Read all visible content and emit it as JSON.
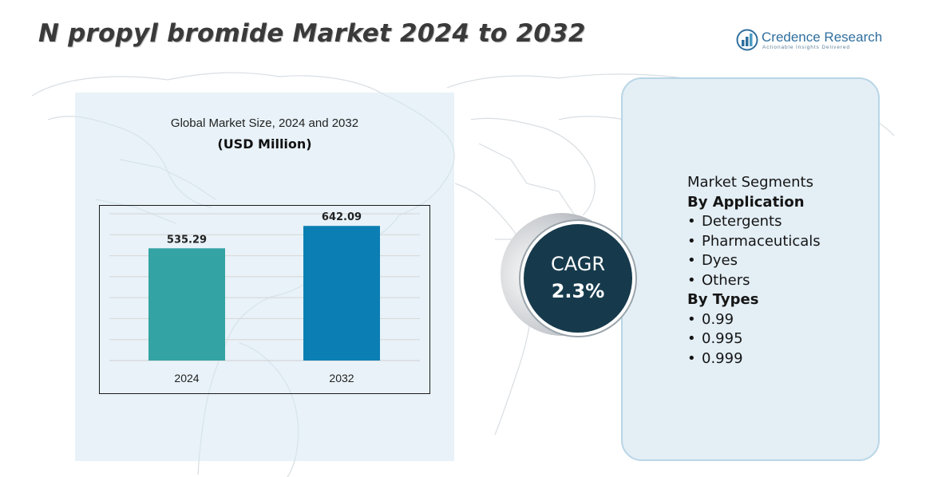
{
  "title": "N propyl bromide Market 2024 to 2032",
  "logo": {
    "name": "Credence Research",
    "tagline": "Actionable Insights Delivered",
    "icon": "bar-growth-icon"
  },
  "colors": {
    "bar_2024": "#34a3a3",
    "bar_2032": "#0b7fb3",
    "cagr_circle": "#163a4c",
    "panel": "#e3eef5"
  },
  "chart_data": {
    "type": "bar",
    "title": "Global Market Size, 2024 and 2032",
    "subtitle": "(USD Million)",
    "categories": [
      "2024",
      "2032"
    ],
    "values": [
      535.29,
      642.09
    ],
    "value_labels": [
      "535.29",
      "642.09"
    ],
    "ylim": [
      0,
      700
    ],
    "grid": true
  },
  "cagr": {
    "label": "CAGR",
    "value": "2.3%"
  },
  "segments": {
    "heading": "Market Segments",
    "groups": [
      {
        "title": "By Application",
        "items": [
          "Detergents",
          "Pharmaceuticals",
          "Dyes",
          "Others"
        ]
      },
      {
        "title": "By Types",
        "items": [
          "0.99",
          "0.995",
          "0.999"
        ]
      }
    ]
  }
}
